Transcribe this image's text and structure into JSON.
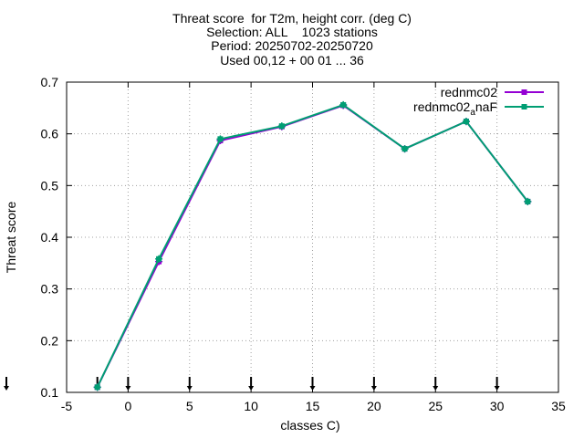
{
  "chart_data": {
    "type": "line",
    "title_lines": [
      "Threat score  for T2m, height corr. (deg C)",
      "Selection: ALL    1023 stations",
      "Period: 20250702-20250720",
      "Used 00,12 + 00 01 ... 36"
    ],
    "xlabel": "classes C)",
    "ylabel": "Threat score",
    "xlim": [
      -5,
      35
    ],
    "ylim": [
      0.1,
      0.7
    ],
    "xticks": [
      -5,
      0,
      5,
      10,
      15,
      20,
      25,
      30,
      35
    ],
    "yticks": [
      0.1,
      0.2,
      0.3,
      0.4,
      0.5,
      0.6,
      0.7
    ],
    "grid": true,
    "legend_position": "top-right",
    "class_markers_x": [
      -5,
      -2.5,
      0,
      5,
      10,
      15,
      20,
      25,
      30
    ],
    "series": [
      {
        "name": "rednmc02",
        "color": "#9400d3",
        "x": [
          -2.5,
          2.5,
          7.5,
          12.5,
          17.5,
          22.5,
          27.5,
          32.5
        ],
        "y": [
          0.11,
          0.353,
          0.587,
          0.614,
          0.655,
          0.571,
          0.624,
          0.469
        ]
      },
      {
        "name": "rednmc02_anaF",
        "name_main": "rednmc02",
        "name_sub": "a",
        "name_tail": "naF",
        "color": "#009e73",
        "x": [
          -2.5,
          2.5,
          7.5,
          12.5,
          17.5,
          22.5,
          27.5,
          32.5
        ],
        "y": [
          0.11,
          0.358,
          0.59,
          0.615,
          0.656,
          0.571,
          0.624,
          0.469
        ]
      }
    ]
  }
}
